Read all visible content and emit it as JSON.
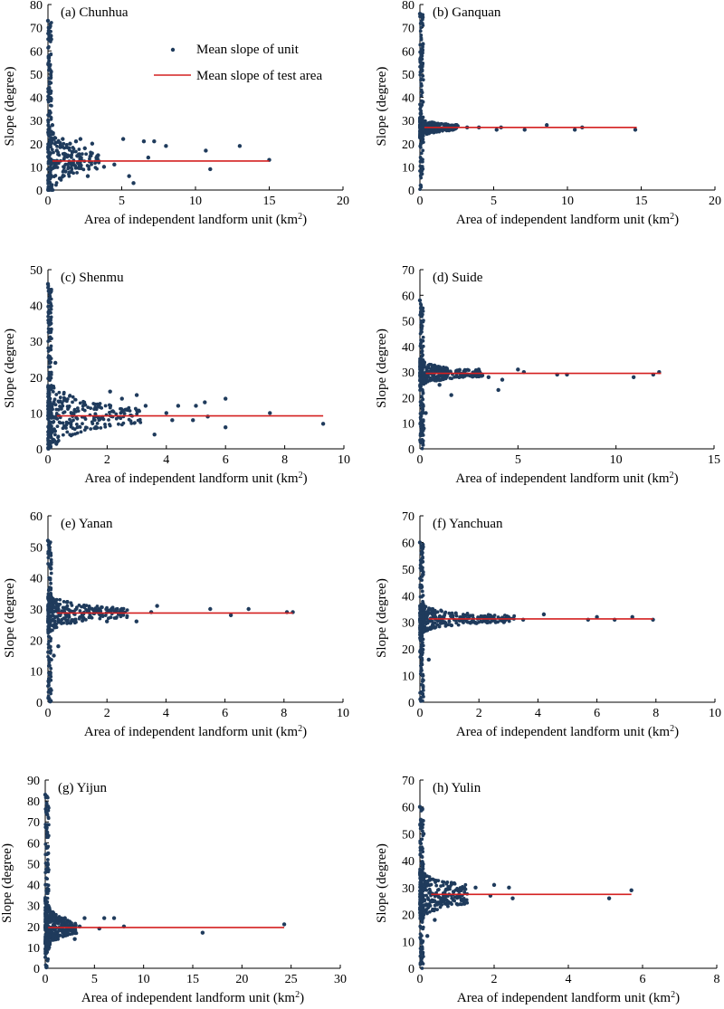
{
  "figure": {
    "legend": {
      "points_label": "Mean slope of unit",
      "line_label": "Mean slope of test area"
    },
    "colors": {
      "points": "#1f3b5c",
      "line": "#d42020",
      "axis": "#000000"
    }
  },
  "chart_data": [
    {
      "type": "scatter",
      "title": "(a) Chunhua",
      "xlabel": "Area of independent landform unit (km",
      "xlabel_sup": "2",
      "xlabel_end": ")",
      "ylabel": "Slope (degree)",
      "xlim": [
        0,
        20
      ],
      "xticks": [
        0,
        5,
        10,
        15,
        20
      ],
      "ylim": [
        0,
        80
      ],
      "yticks": [
        0,
        10,
        20,
        30,
        40,
        50,
        60,
        70,
        80
      ],
      "mean_line": {
        "y": 12.5,
        "x": [
          0.3,
          15
        ]
      },
      "points": [
        [
          0,
          73
        ],
        [
          0.05,
          57
        ],
        [
          0.08,
          40
        ],
        [
          0.3,
          28
        ],
        [
          0.4,
          22
        ],
        [
          0.6,
          17
        ],
        [
          1,
          22
        ],
        [
          1.5,
          20
        ],
        [
          1.9,
          21
        ],
        [
          2.2,
          22
        ],
        [
          2.5,
          18
        ],
        [
          3,
          20
        ],
        [
          3.4,
          15
        ],
        [
          3.8,
          10
        ],
        [
          4.5,
          11
        ],
        [
          5.1,
          22
        ],
        [
          5.5,
          6
        ],
        [
          6.5,
          21
        ],
        [
          7.2,
          21
        ],
        [
          6.8,
          14
        ],
        [
          8,
          19
        ],
        [
          10.7,
          17
        ],
        [
          11,
          9
        ],
        [
          13,
          19
        ],
        [
          15,
          13
        ],
        [
          5.8,
          3
        ],
        [
          2.7,
          6
        ],
        [
          1.2,
          8
        ],
        [
          0.8,
          5
        ],
        [
          1.7,
          12
        ]
      ],
      "spread": {
        "ymax": 30,
        "ymin": 0,
        "xmax": 3.5,
        "n": 230
      }
    },
    {
      "type": "scatter",
      "title": "(b) Ganquan",
      "xlabel": "Area of independent landform unit (km",
      "xlabel_sup": "2",
      "xlabel_end": ")",
      "ylabel": "Slope (degree)",
      "xlim": [
        0,
        20
      ],
      "xticks": [
        0,
        5,
        10,
        15,
        20
      ],
      "ylim": [
        0,
        80
      ],
      "yticks": [
        0,
        10,
        20,
        30,
        40,
        50,
        60,
        70,
        80
      ],
      "mean_line": {
        "y": 27,
        "x": [
          0.3,
          14.7
        ]
      },
      "points": [
        [
          0,
          76
        ],
        [
          0.05,
          57
        ],
        [
          0.1,
          45
        ],
        [
          0.08,
          8
        ],
        [
          0.05,
          2
        ],
        [
          0.2,
          38
        ],
        [
          2.5,
          28
        ],
        [
          3.2,
          27
        ],
        [
          4,
          27
        ],
        [
          5.2,
          26
        ],
        [
          5.5,
          27
        ],
        [
          7.1,
          26
        ],
        [
          8.6,
          28
        ],
        [
          10.5,
          26
        ],
        [
          11,
          27
        ],
        [
          14.6,
          26
        ]
      ],
      "spread": {
        "ymax": 30,
        "ymin": 22,
        "xmax": 2.6,
        "n": 300
      }
    },
    {
      "type": "scatter",
      "title": "(c) Shenmu",
      "xlabel": "Area of independent landform unit (km",
      "xlabel_sup": "2",
      "xlabel_end": ")",
      "ylabel": "Slope (degree)",
      "xlim": [
        0,
        10
      ],
      "xticks": [
        0,
        2,
        4,
        6,
        8,
        10
      ],
      "ylim": [
        0,
        50
      ],
      "yticks": [
        0,
        10,
        20,
        30,
        40,
        50
      ],
      "mean_line": {
        "y": 9.2,
        "x": [
          0.3,
          9.3
        ]
      },
      "points": [
        [
          0,
          46
        ],
        [
          0.05,
          42
        ],
        [
          0.1,
          35
        ],
        [
          0.25,
          24
        ],
        [
          2.5,
          14
        ],
        [
          3,
          15
        ],
        [
          3.3,
          12
        ],
        [
          3.6,
          4
        ],
        [
          4,
          10
        ],
        [
          4.2,
          8
        ],
        [
          4.4,
          12
        ],
        [
          4.9,
          8
        ],
        [
          5.0,
          12
        ],
        [
          5.3,
          13
        ],
        [
          5.4,
          9
        ],
        [
          6,
          14
        ],
        [
          6,
          6
        ],
        [
          7.5,
          10
        ],
        [
          9.3,
          7
        ],
        [
          2.1,
          16
        ]
      ],
      "spread": {
        "ymax": 20,
        "ymin": 2,
        "xmax": 3.2,
        "n": 300
      }
    },
    {
      "type": "scatter",
      "title": "(d) Suide",
      "xlabel": "Area of independent landform unit (km",
      "xlabel_sup": "2",
      "xlabel_end": ")",
      "ylabel": "Slope (degree)",
      "xlim": [
        0,
        15
      ],
      "xticks": [
        0,
        5,
        10,
        15
      ],
      "ylim": [
        0,
        70
      ],
      "yticks": [
        0,
        10,
        20,
        30,
        40,
        50,
        60,
        70
      ],
      "mean_line": {
        "y": 29.5,
        "x": [
          0.3,
          12.3
        ]
      },
      "points": [
        [
          0,
          58
        ],
        [
          0.05,
          55
        ],
        [
          0.1,
          48
        ],
        [
          0.2,
          8
        ],
        [
          0.3,
          14
        ],
        [
          1,
          25
        ],
        [
          1.6,
          21
        ],
        [
          2,
          28
        ],
        [
          3,
          31
        ],
        [
          3.5,
          28
        ],
        [
          4,
          23
        ],
        [
          4.2,
          27
        ],
        [
          5,
          31
        ],
        [
          5.3,
          30
        ],
        [
          7,
          29
        ],
        [
          7.5,
          29
        ],
        [
          10.9,
          28
        ],
        [
          11.9,
          29
        ],
        [
          12.2,
          30
        ]
      ],
      "spread": {
        "ymax": 34,
        "ymin": 24,
        "xmax": 3.2,
        "n": 300
      }
    },
    {
      "type": "scatter",
      "title": "(e) Yanan",
      "xlabel": "Area of independent landform unit (km",
      "xlabel_sup": "2",
      "xlabel_end": ")",
      "ylabel": "Slope (degree)",
      "xlim": [
        0,
        10
      ],
      "xticks": [
        0,
        2,
        4,
        6,
        8,
        10
      ],
      "ylim": [
        0,
        60
      ],
      "yticks": [
        0,
        10,
        20,
        30,
        40,
        50,
        60
      ],
      "mean_line": {
        "y": 28.7,
        "x": [
          0.3,
          8.3
        ]
      },
      "points": [
        [
          0,
          52
        ],
        [
          0.05,
          49
        ],
        [
          0.1,
          43
        ],
        [
          0.2,
          15
        ],
        [
          0.35,
          18
        ],
        [
          1.5,
          30
        ],
        [
          2,
          26
        ],
        [
          2.5,
          30
        ],
        [
          3,
          26
        ],
        [
          3.5,
          29
        ],
        [
          3.7,
          31
        ],
        [
          5.5,
          30
        ],
        [
          6.2,
          28
        ],
        [
          6.8,
          30
        ],
        [
          8.1,
          29
        ],
        [
          8.3,
          29
        ]
      ],
      "spread": {
        "ymax": 33,
        "ymin": 22,
        "xmax": 2.7,
        "n": 300
      }
    },
    {
      "type": "scatter",
      "title": "(f) Yanchuan",
      "xlabel": "Area of independent landform unit (km",
      "xlabel_sup": "2",
      "xlabel_end": ")",
      "ylabel": "Slope (degree)",
      "xlim": [
        0,
        10
      ],
      "xticks": [
        0,
        2,
        4,
        6,
        8,
        10
      ],
      "ylim": [
        0,
        70
      ],
      "yticks": [
        0,
        10,
        20,
        30,
        40,
        50,
        60,
        70
      ],
      "mean_line": {
        "y": 31.3,
        "x": [
          0.3,
          7.9
        ]
      },
      "points": [
        [
          0,
          60
        ],
        [
          0.05,
          56
        ],
        [
          0.1,
          48
        ],
        [
          0.1,
          10
        ],
        [
          0.3,
          16
        ],
        [
          3,
          32
        ],
        [
          3.5,
          31
        ],
        [
          4.2,
          33
        ],
        [
          5.7,
          31
        ],
        [
          6,
          32
        ],
        [
          6.6,
          31
        ],
        [
          7.2,
          32
        ],
        [
          7.9,
          31
        ]
      ],
      "spread": {
        "ymax": 35,
        "ymin": 25,
        "xmax": 3.2,
        "n": 320
      }
    },
    {
      "type": "scatter",
      "title": "(g) Yijun",
      "xlabel": "Area of independent landform unit (km",
      "xlabel_sup": "2",
      "xlabel_end": ")",
      "ylabel": "Slope (degree)",
      "xlim": [
        0,
        30
      ],
      "xticks": [
        0,
        5,
        10,
        15,
        20,
        25,
        30
      ],
      "ylim": [
        0,
        90
      ],
      "yticks": [
        0,
        10,
        20,
        30,
        40,
        50,
        60,
        70,
        80,
        90
      ],
      "mean_line": {
        "y": 19.5,
        "x": [
          0.3,
          24.3
        ]
      },
      "points": [
        [
          0,
          83
        ],
        [
          0.1,
          75
        ],
        [
          0.2,
          65
        ],
        [
          0.3,
          55
        ],
        [
          2,
          24
        ],
        [
          3,
          14
        ],
        [
          3.5,
          20
        ],
        [
          4,
          24
        ],
        [
          5.5,
          19
        ],
        [
          6,
          24
        ],
        [
          7,
          24
        ],
        [
          8,
          20
        ],
        [
          16,
          17
        ],
        [
          24.3,
          21
        ]
      ],
      "spread": {
        "ymax": 26,
        "ymin": 2,
        "xmax": 3.2,
        "n": 300
      }
    },
    {
      "type": "scatter",
      "title": "(h) Yulin",
      "xlabel": "Area of independent landform unit (km",
      "xlabel_sup": "2",
      "xlabel_end": ")",
      "ylabel": "Slope (degree)",
      "xlim": [
        0,
        8
      ],
      "xticks": [
        0,
        2,
        4,
        6,
        8
      ],
      "ylim": [
        0,
        70
      ],
      "yticks": [
        0,
        10,
        20,
        30,
        40,
        50,
        60,
        70
      ],
      "mean_line": {
        "y": 27.5,
        "x": [
          0.3,
          5.7
        ]
      },
      "points": [
        [
          0,
          60
        ],
        [
          0.05,
          55
        ],
        [
          0.1,
          50
        ],
        [
          0.2,
          12
        ],
        [
          0.4,
          18
        ],
        [
          1.2,
          24
        ],
        [
          1.5,
          30
        ],
        [
          1.9,
          27
        ],
        [
          2,
          31
        ],
        [
          2.4,
          30
        ],
        [
          2.5,
          26
        ],
        [
          5.1,
          26
        ],
        [
          5.7,
          29
        ]
      ],
      "spread": {
        "ymax": 33,
        "ymin": 18,
        "xmax": 1.3,
        "n": 280
      }
    }
  ]
}
